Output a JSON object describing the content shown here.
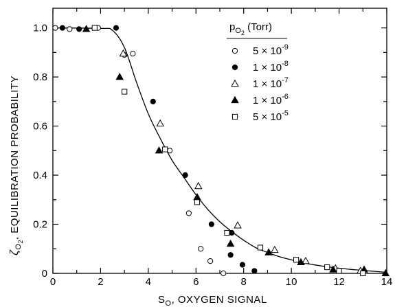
{
  "chart_data": {
    "type": "scatter",
    "title": "",
    "xlabel_main": "S",
    "xlabel_sub": "O",
    "xlabel_rest": ", OXYGEN SIGNAL",
    "ylabel_main": "ζ",
    "ylabel_sub": "O",
    "ylabel_subsub": "2",
    "ylabel_rest": ", EQUILIBRATION PROBABILITY",
    "xlim": [
      0,
      14
    ],
    "ylim": [
      0,
      1.08
    ],
    "x_ticks": [
      0,
      2,
      4,
      6,
      8,
      10,
      12,
      14
    ],
    "x_tick_labels": [
      "0",
      "2",
      "4",
      "6",
      "8",
      "10",
      "12",
      "14"
    ],
    "y_ticks": [
      0,
      0.2,
      0.4,
      0.6,
      0.8,
      1.0
    ],
    "y_tick_labels": [
      "0",
      "0.2",
      "0.4",
      "0.6",
      "0.8",
      "1.0"
    ],
    "legend": {
      "title_main": "p",
      "title_sub": "O",
      "title_subsub": "2",
      "title_rest": " (Torr)",
      "placement": "top-right"
    },
    "series": [
      {
        "name": "5 × 10",
        "exp": "-9",
        "marker": "circle-open",
        "points": [
          [
            0.1,
            1.0
          ],
          [
            0.7,
            0.995
          ],
          [
            1.9,
            1.0
          ],
          [
            3.0,
            0.89
          ],
          [
            3.35,
            0.895
          ],
          [
            4.9,
            0.5
          ],
          [
            5.7,
            0.245
          ],
          [
            6.2,
            0.1
          ],
          [
            6.6,
            0.05
          ],
          [
            7.15,
            0.0
          ]
        ]
      },
      {
        "name": "1 × 10",
        "exp": "-8",
        "marker": "circle-filled",
        "points": [
          [
            0.4,
            1.0
          ],
          [
            1.1,
            0.995
          ],
          [
            2.65,
            1.0
          ],
          [
            4.2,
            0.7
          ],
          [
            5.55,
            0.4
          ],
          [
            6.65,
            0.2
          ],
          [
            7.5,
            0.165
          ],
          [
            7.45,
            0.075
          ],
          [
            7.95,
            0.035
          ],
          [
            8.45,
            0.01
          ]
        ]
      },
      {
        "name": "1 × 10",
        "exp": "-7",
        "marker": "triangle-open",
        "points": [
          [
            2.95,
            0.895
          ],
          [
            4.5,
            0.61
          ],
          [
            6.1,
            0.355
          ],
          [
            7.75,
            0.195
          ],
          [
            9.3,
            0.095
          ],
          [
            10.6,
            0.05
          ],
          [
            11.85,
            0.02
          ],
          [
            12.9,
            0.01
          ]
        ]
      },
      {
        "name": "1 × 10",
        "exp": "-6",
        "marker": "triangle-filled",
        "points": [
          [
            1.4,
            0.995
          ],
          [
            2.8,
            0.8
          ],
          [
            4.45,
            0.5
          ],
          [
            6.05,
            0.31
          ],
          [
            7.45,
            0.12
          ],
          [
            9.05,
            0.085
          ],
          [
            10.4,
            0.045
          ],
          [
            11.75,
            0.015
          ],
          [
            13.05,
            0.015
          ],
          [
            13.95,
            0.0
          ]
        ]
      },
      {
        "name": "5 × 10",
        "exp": "-5",
        "marker": "square-open",
        "points": [
          [
            1.75,
            1.0
          ],
          [
            3.0,
            0.74
          ],
          [
            4.7,
            0.505
          ],
          [
            6.05,
            0.29
          ],
          [
            7.3,
            0.165
          ],
          [
            8.7,
            0.105
          ],
          [
            10.2,
            0.055
          ],
          [
            11.5,
            0.025
          ],
          [
            12.0,
            0.01
          ],
          [
            13.0,
            0.0
          ]
        ]
      }
    ],
    "fit_curve": [
      [
        0,
        1.0
      ],
      [
        2.0,
        0.998
      ],
      [
        2.5,
        0.99
      ],
      [
        3.0,
        0.92
      ],
      [
        3.5,
        0.78
      ],
      [
        4.0,
        0.65
      ],
      [
        4.5,
        0.55
      ],
      [
        5.0,
        0.46
      ],
      [
        5.5,
        0.39
      ],
      [
        6.0,
        0.32
      ],
      [
        6.5,
        0.26
      ],
      [
        7.0,
        0.21
      ],
      [
        7.5,
        0.17
      ],
      [
        8.0,
        0.135
      ],
      [
        8.5,
        0.105
      ],
      [
        9.0,
        0.085
      ],
      [
        9.5,
        0.068
      ],
      [
        10.0,
        0.055
      ],
      [
        10.5,
        0.043
      ],
      [
        11.0,
        0.034
      ],
      [
        11.5,
        0.027
      ],
      [
        12.0,
        0.021
      ],
      [
        12.5,
        0.016
      ],
      [
        13.0,
        0.012
      ],
      [
        13.5,
        0.008
      ],
      [
        14.0,
        0.004
      ]
    ],
    "grid": false
  }
}
